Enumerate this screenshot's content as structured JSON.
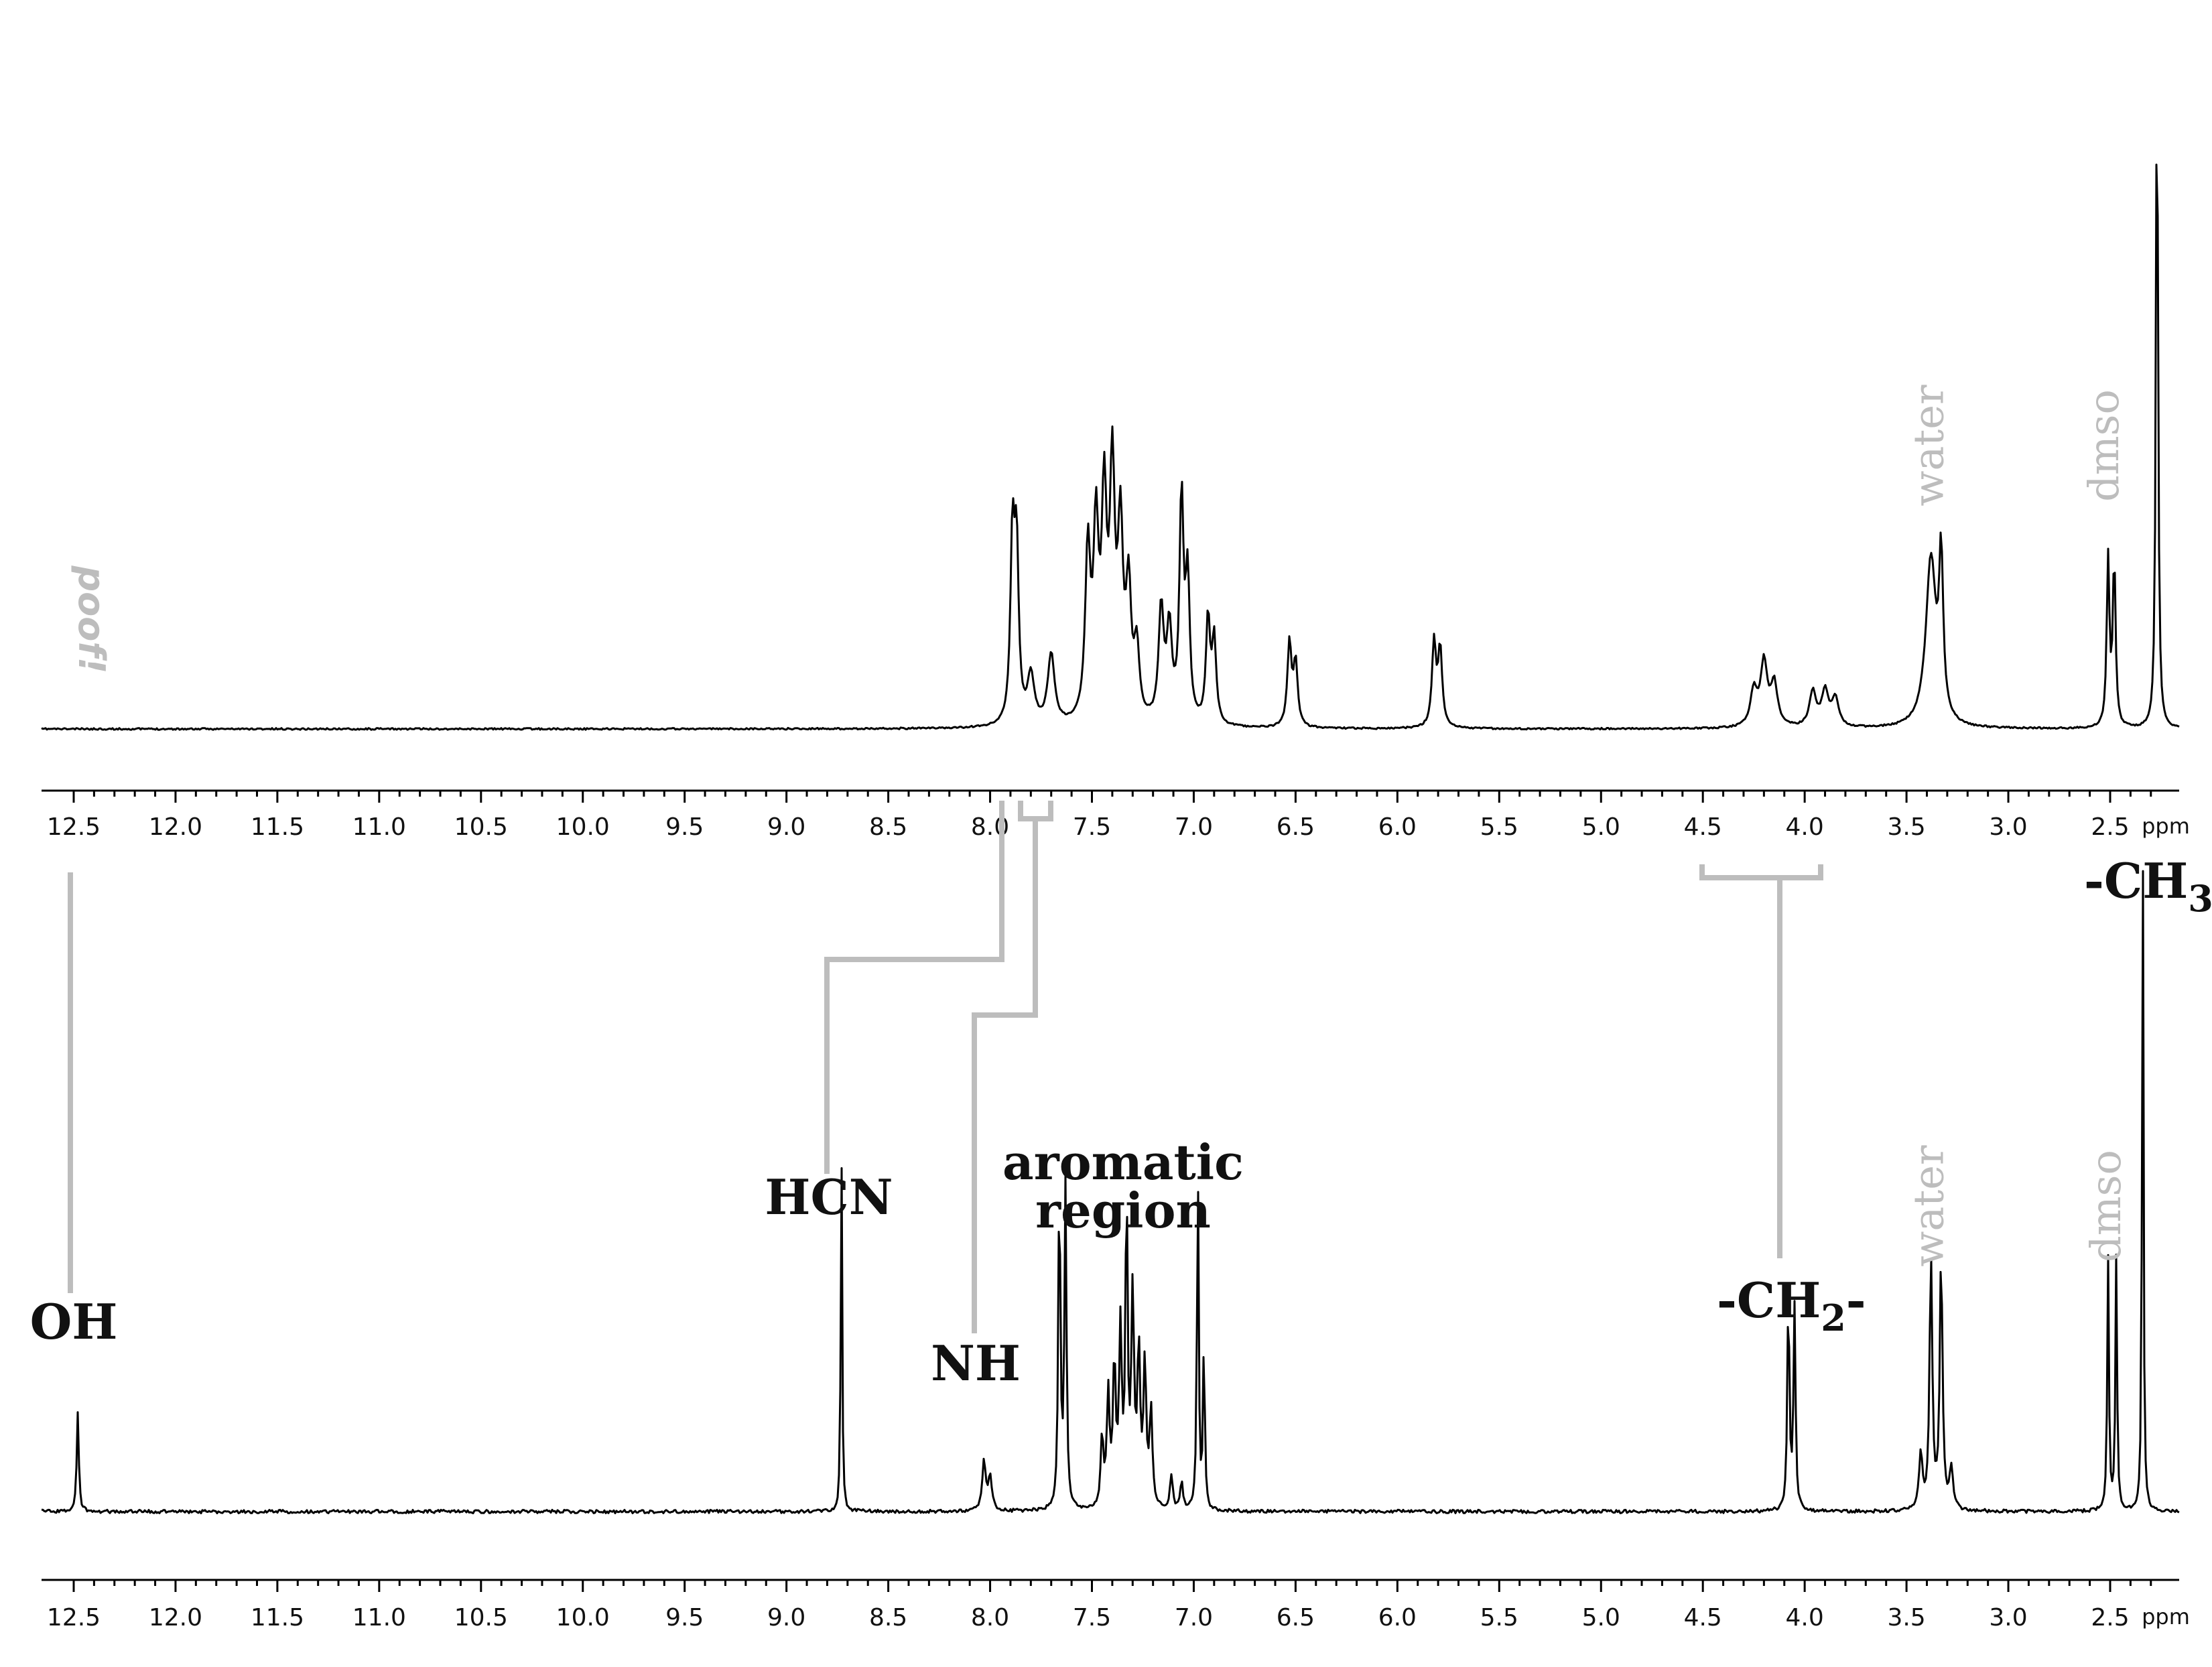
{
  "chart_data": [
    {
      "type": "line",
      "title": "",
      "xlabel": "ppm",
      "ylabel": "",
      "xlim": [
        12.6,
        2.15
      ],
      "x_reversed": true,
      "grid": false,
      "x_ticks": [
        "12.5",
        "12.0",
        "11.5",
        "11.0",
        "10.5",
        "10.0",
        "9.5",
        "9.0",
        "8.5",
        "8.0",
        "7.5",
        "7.0",
        "6.5",
        "6.0",
        "5.5",
        "5.0",
        "4.5",
        "4.0",
        "3.5",
        "3.0",
        "2.5"
      ],
      "peaks": [
        {
          "ppm": 7.89,
          "height": 0.26,
          "width": 0.012
        },
        {
          "ppm": 7.87,
          "height": 0.24,
          "width": 0.012
        },
        {
          "ppm": 7.8,
          "height": 0.07,
          "width": 0.02
        },
        {
          "ppm": 7.7,
          "height": 0.1,
          "width": 0.02
        },
        {
          "ppm": 7.52,
          "height": 0.24,
          "width": 0.015
        },
        {
          "ppm": 7.48,
          "height": 0.26,
          "width": 0.015
        },
        {
          "ppm": 7.44,
          "height": 0.3,
          "width": 0.015
        },
        {
          "ppm": 7.4,
          "height": 0.34,
          "width": 0.015
        },
        {
          "ppm": 7.36,
          "height": 0.26,
          "width": 0.015
        },
        {
          "ppm": 7.32,
          "height": 0.18,
          "width": 0.015
        },
        {
          "ppm": 7.28,
          "height": 0.1,
          "width": 0.015
        },
        {
          "ppm": 7.16,
          "height": 0.16,
          "width": 0.015
        },
        {
          "ppm": 7.12,
          "height": 0.13,
          "width": 0.015
        },
        {
          "ppm": 7.06,
          "height": 0.32,
          "width": 0.012
        },
        {
          "ppm": 7.03,
          "height": 0.2,
          "width": 0.012
        },
        {
          "ppm": 6.93,
          "height": 0.15,
          "width": 0.012
        },
        {
          "ppm": 6.9,
          "height": 0.12,
          "width": 0.012
        },
        {
          "ppm": 6.53,
          "height": 0.12,
          "width": 0.012
        },
        {
          "ppm": 6.5,
          "height": 0.09,
          "width": 0.012
        },
        {
          "ppm": 5.82,
          "height": 0.12,
          "width": 0.012
        },
        {
          "ppm": 5.79,
          "height": 0.11,
          "width": 0.012
        },
        {
          "ppm": 4.25,
          "height": 0.05,
          "width": 0.02
        },
        {
          "ppm": 4.2,
          "height": 0.09,
          "width": 0.02
        },
        {
          "ppm": 4.15,
          "height": 0.06,
          "width": 0.02
        },
        {
          "ppm": 3.96,
          "height": 0.05,
          "width": 0.02
        },
        {
          "ppm": 3.9,
          "height": 0.05,
          "width": 0.02
        },
        {
          "ppm": 3.85,
          "height": 0.04,
          "width": 0.02
        },
        {
          "ppm": 3.38,
          "height": 0.24,
          "width": 0.03
        },
        {
          "ppm": 3.33,
          "height": 0.22,
          "width": 0.012
        },
        {
          "ppm": 2.51,
          "height": 0.24,
          "width": 0.008
        },
        {
          "ppm": 2.48,
          "height": 0.24,
          "width": 0.008
        },
        {
          "ppm": 2.27,
          "height": 1.0,
          "width": 0.006
        }
      ],
      "annotations": [
        {
          "text": "poof!",
          "ppm": 12.5,
          "style": "poof"
        },
        {
          "text": "water",
          "ppm": 3.38,
          "style": "solvent"
        },
        {
          "text": "dmso",
          "ppm": 2.5,
          "style": "solvent"
        }
      ]
    },
    {
      "type": "line",
      "title": "",
      "xlabel": "ppm",
      "ylabel": "",
      "xlim": [
        12.6,
        2.2
      ],
      "x_reversed": true,
      "grid": false,
      "x_ticks": [
        "12.5",
        "12.0",
        "11.5",
        "11.0",
        "10.5",
        "10.0",
        "9.5",
        "9.0",
        "8.5",
        "8.0",
        "7.5",
        "7.0",
        "6.5",
        "6.0",
        "5.5",
        "5.0",
        "4.5",
        "4.0",
        "3.5",
        "3.0",
        "2.5"
      ],
      "peaks": [
        {
          "ppm": 12.48,
          "height": 0.14,
          "width": 0.006
        },
        {
          "ppm": 8.73,
          "height": 0.52,
          "width": 0.004
        },
        {
          "ppm": 8.03,
          "height": 0.07,
          "width": 0.01
        },
        {
          "ppm": 8.0,
          "height": 0.05,
          "width": 0.01
        },
        {
          "ppm": 7.66,
          "height": 0.47,
          "width": 0.006
        },
        {
          "ppm": 7.63,
          "height": 0.46,
          "width": 0.006
        },
        {
          "ppm": 7.45,
          "height": 0.1,
          "width": 0.008
        },
        {
          "ppm": 7.42,
          "height": 0.16,
          "width": 0.008
        },
        {
          "ppm": 7.39,
          "height": 0.2,
          "width": 0.008
        },
        {
          "ppm": 7.36,
          "height": 0.25,
          "width": 0.008
        },
        {
          "ppm": 7.33,
          "height": 0.45,
          "width": 0.006
        },
        {
          "ppm": 7.3,
          "height": 0.3,
          "width": 0.008
        },
        {
          "ppm": 7.27,
          "height": 0.22,
          "width": 0.008
        },
        {
          "ppm": 7.24,
          "height": 0.2,
          "width": 0.008
        },
        {
          "ppm": 7.21,
          "height": 0.14,
          "width": 0.008
        },
        {
          "ppm": 7.11,
          "height": 0.05,
          "width": 0.008
        },
        {
          "ppm": 7.06,
          "height": 0.04,
          "width": 0.008
        },
        {
          "ppm": 6.98,
          "height": 0.49,
          "width": 0.005
        },
        {
          "ppm": 6.95,
          "height": 0.24,
          "width": 0.005
        },
        {
          "ppm": 4.08,
          "height": 0.31,
          "width": 0.006
        },
        {
          "ppm": 4.05,
          "height": 0.29,
          "width": 0.006
        },
        {
          "ppm": 3.43,
          "height": 0.08,
          "width": 0.01
        },
        {
          "ppm": 3.38,
          "height": 0.36,
          "width": 0.008
        },
        {
          "ppm": 3.33,
          "height": 0.36,
          "width": 0.008
        },
        {
          "ppm": 3.28,
          "height": 0.06,
          "width": 0.01
        },
        {
          "ppm": 2.51,
          "height": 0.36,
          "width": 0.005
        },
        {
          "ppm": 2.47,
          "height": 0.36,
          "width": 0.005
        },
        {
          "ppm": 2.34,
          "height": 1.0,
          "width": 0.004
        }
      ],
      "annotations": [
        {
          "text": "OH",
          "ppm": 12.48,
          "style": "bold"
        },
        {
          "text": "HCN",
          "ppm": 8.73,
          "style": "bold"
        },
        {
          "text": "NH",
          "ppm": 8.02,
          "style": "bold"
        },
        {
          "text": "aromatic",
          "ppm": 7.25,
          "style": "bold"
        },
        {
          "text": "region",
          "ppm": 7.25,
          "style": "bold"
        },
        {
          "text": "-CH",
          "ppm": 4.07,
          "style": "bold",
          "subscript": "2",
          "suffix": "-"
        },
        {
          "text": "water",
          "ppm": 3.38,
          "style": "solvent"
        },
        {
          "text": "dmso",
          "ppm": 2.49,
          "style": "solvent"
        },
        {
          "text": "-CH",
          "ppm": 2.34,
          "style": "bold",
          "subscript": "3",
          "suffix": ""
        }
      ]
    }
  ],
  "correlations": [
    {
      "from_ppm": 12.48,
      "to_ppm": 12.48,
      "label": "OH"
    },
    {
      "from_ppm": 7.88,
      "to_ppm": 8.73,
      "label": "HCN"
    },
    {
      "from_ppm_range": [
        7.78,
        7.67
      ],
      "to_ppm": 8.02,
      "label": "NH"
    },
    {
      "from_ppm_range": [
        4.25,
        3.85
      ],
      "to_ppm": 4.07,
      "label": "-CH2-"
    }
  ]
}
